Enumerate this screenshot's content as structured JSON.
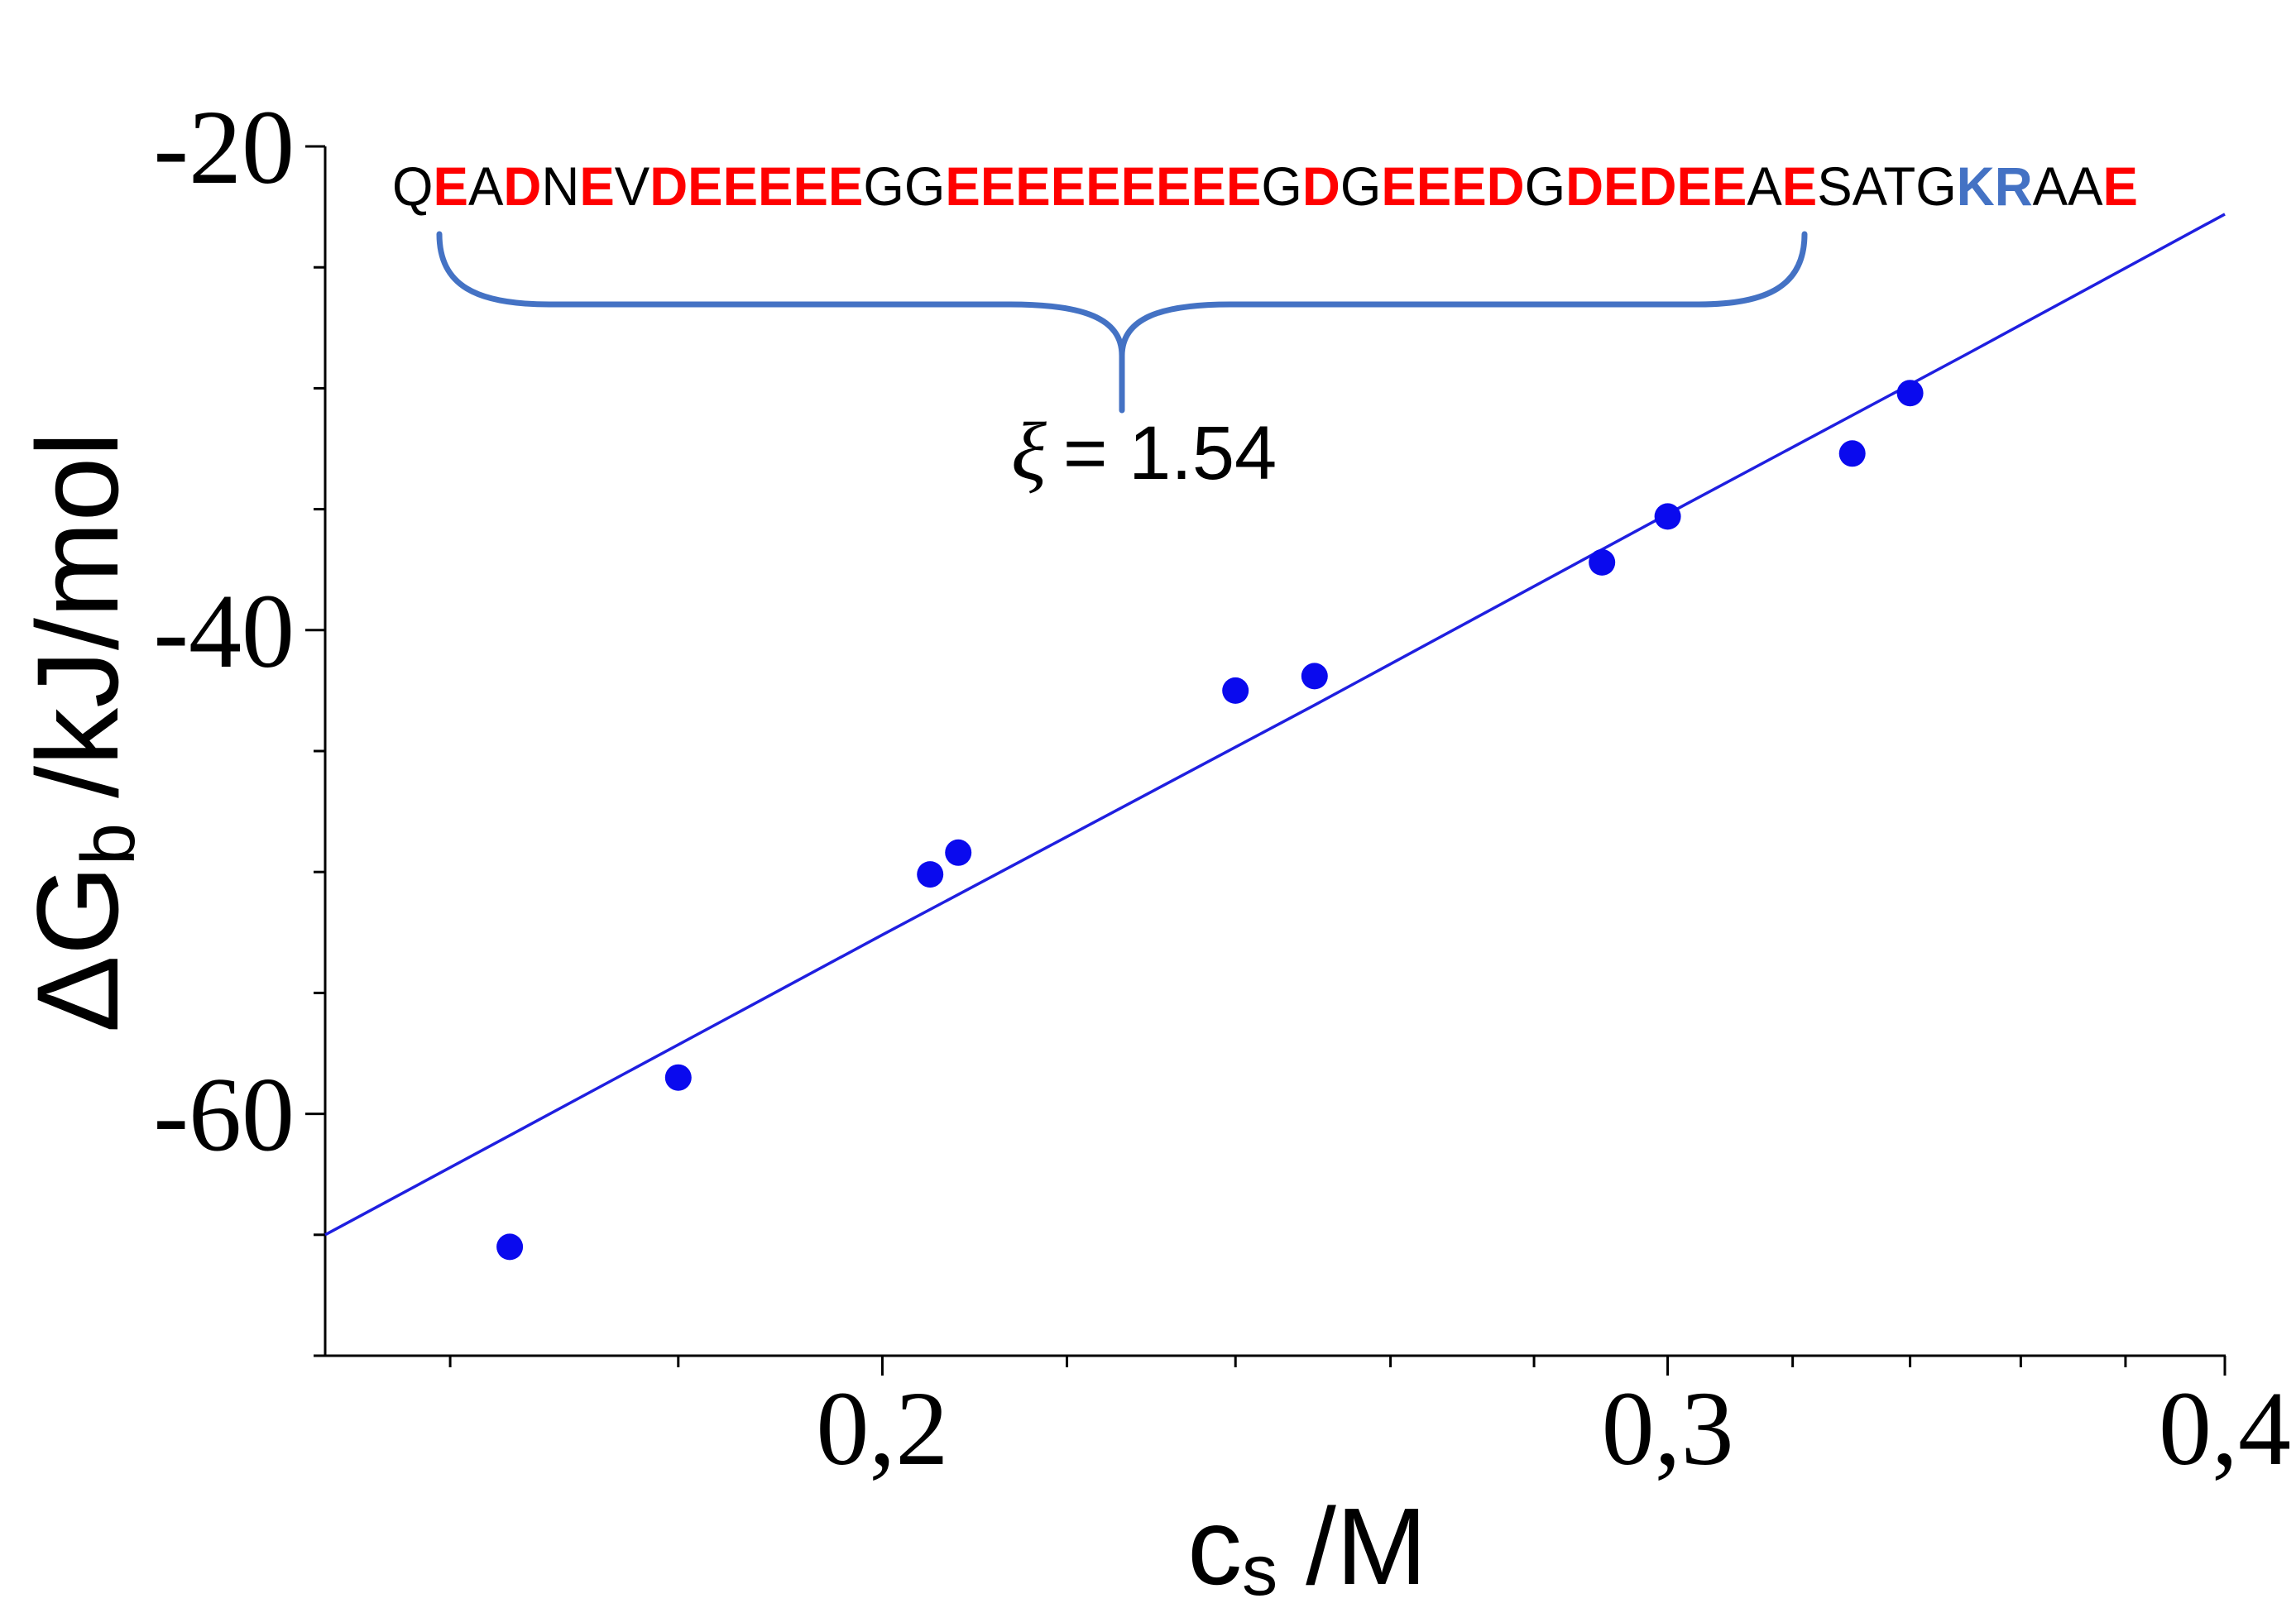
{
  "chart_data": {
    "type": "scatter",
    "x_scale": "log",
    "xlim": [
      0.15,
      0.4
    ],
    "ylim": [
      -70,
      -20
    ],
    "grid": false,
    "xlabel": {
      "main": "c",
      "sub": "s",
      "unit": "/M"
    },
    "ylabel": {
      "main": "ΔG",
      "sub": "b",
      "unit": "/kJ/mol"
    },
    "x_ticks": [
      {
        "value": 0.2,
        "label": "0,2"
      },
      {
        "value": 0.3,
        "label": "0,3"
      },
      {
        "value": 0.4,
        "label": "0,4"
      }
    ],
    "x_minor_ticks": [
      0.16,
      0.18,
      0.22,
      0.24,
      0.26,
      0.28,
      0.32,
      0.34,
      0.36,
      0.38
    ],
    "y_ticks": [
      {
        "value": -20,
        "label": "-20"
      },
      {
        "value": -40,
        "label": "-40"
      },
      {
        "value": -60,
        "label": "-60"
      }
    ],
    "y_minor_ticks": [
      -25,
      -30,
      -35,
      -45,
      -50,
      -55,
      -65,
      -70
    ],
    "series": [
      {
        "type": "line",
        "color": "#1f1fe0",
        "points": [
          [
            0.15,
            -65.0
          ],
          [
            0.2,
            -52.6
          ],
          [
            0.25,
            -43.1
          ],
          [
            0.3,
            -35.2
          ],
          [
            0.35,
            -28.6
          ],
          [
            0.4,
            -22.8
          ]
        ]
      },
      {
        "type": "scatter",
        "color": "#0a0aee",
        "points": [
          [
            0.165,
            -65.5
          ],
          [
            0.18,
            -58.5
          ],
          [
            0.205,
            -50.1
          ],
          [
            0.208,
            -49.2
          ],
          [
            0.24,
            -42.5
          ],
          [
            0.25,
            -41.9
          ],
          [
            0.29,
            -37.2
          ],
          [
            0.3,
            -35.3
          ],
          [
            0.33,
            -32.7
          ],
          [
            0.34,
            -30.2
          ]
        ]
      }
    ]
  },
  "annotation": {
    "brace_color": "#4472c4",
    "sequence": [
      {
        "text": "Q",
        "color": "#000000"
      },
      {
        "text": "E",
        "color": "#ff0000"
      },
      {
        "text": "A",
        "color": "#000000"
      },
      {
        "text": "D",
        "color": "#ff0000"
      },
      {
        "text": "N",
        "color": "#000000"
      },
      {
        "text": "E",
        "color": "#ff0000"
      },
      {
        "text": "V",
        "color": "#000000"
      },
      {
        "text": "DEEEEE",
        "color": "#ff0000"
      },
      {
        "text": "GG",
        "color": "#000000"
      },
      {
        "text": "EEEEEEEEE",
        "color": "#ff0000"
      },
      {
        "text": "G",
        "color": "#000000"
      },
      {
        "text": "D",
        "color": "#ff0000"
      },
      {
        "text": "G",
        "color": "#000000"
      },
      {
        "text": "EEED",
        "color": "#ff0000"
      },
      {
        "text": "G",
        "color": "#000000"
      },
      {
        "text": "DEDEE",
        "color": "#ff0000"
      },
      {
        "text": "A",
        "color": "#000000"
      },
      {
        "text": "E",
        "color": "#ff0000"
      },
      {
        "text": "SATG",
        "color": "#000000"
      },
      {
        "text": "KR",
        "color": "#4472c4"
      },
      {
        "text": "AA",
        "color": "#000000"
      },
      {
        "text": "E",
        "color": "#ff0000"
      }
    ],
    "xi": {
      "symbol": "ξ",
      "text": "= 1.54"
    }
  }
}
